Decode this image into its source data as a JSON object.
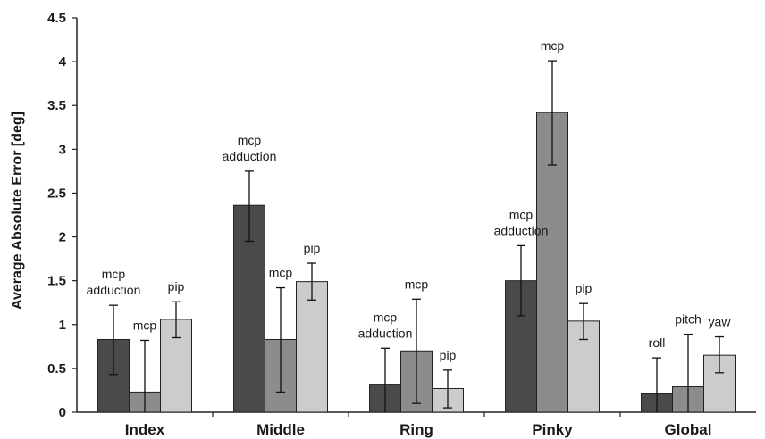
{
  "chart_data": {
    "type": "bar",
    "ylabel": "Average Absolute Error [deg]",
    "xlabel": "",
    "ylim": [
      0,
      4.5
    ],
    "yticks": [
      "0",
      "0.5",
      "1",
      "1.5",
      "2",
      "2.5",
      "3",
      "3.5",
      "4",
      "4.5"
    ],
    "grid": false,
    "legend": "none",
    "colors": [
      "#4a4a4a",
      "#8c8c8c",
      "#cccccc"
    ],
    "groups": [
      {
        "category": "Index",
        "bars": [
          {
            "label": [
              "mcp",
              "adduction"
            ],
            "value": 0.83,
            "err_low": 0.43,
            "err_high": 1.22
          },
          {
            "label": [
              "mcp"
            ],
            "value": 0.23,
            "err_low": 0.0,
            "err_high": 0.82
          },
          {
            "label": [
              "pip"
            ],
            "value": 1.06,
            "err_low": 0.85,
            "err_high": 1.26
          }
        ]
      },
      {
        "category": "Middle",
        "bars": [
          {
            "label": [
              "mcp",
              "adduction"
            ],
            "value": 2.36,
            "err_low": 1.95,
            "err_high": 2.75
          },
          {
            "label": [
              "mcp"
            ],
            "value": 0.83,
            "err_low": 0.23,
            "err_high": 1.42
          },
          {
            "label": [
              "pip"
            ],
            "value": 1.49,
            "err_low": 1.28,
            "err_high": 1.7
          }
        ]
      },
      {
        "category": "Ring",
        "bars": [
          {
            "label": [
              "mcp",
              "adduction"
            ],
            "value": 0.32,
            "err_low": 0.0,
            "err_high": 0.73
          },
          {
            "label": [
              "mcp"
            ],
            "value": 0.7,
            "err_low": 0.1,
            "err_high": 1.29
          },
          {
            "label": [
              "pip"
            ],
            "value": 0.27,
            "err_low": 0.05,
            "err_high": 0.48
          }
        ]
      },
      {
        "category": "Pinky",
        "bars": [
          {
            "label": [
              "mcp",
              "adduction"
            ],
            "value": 1.5,
            "err_low": 1.1,
            "err_high": 1.9
          },
          {
            "label": [
              "mcp"
            ],
            "value": 3.42,
            "err_low": 2.82,
            "err_high": 4.01
          },
          {
            "label": [
              "pip"
            ],
            "value": 1.04,
            "err_low": 0.83,
            "err_high": 1.24
          }
        ]
      },
      {
        "category": "Global",
        "bars": [
          {
            "label": [
              "roll"
            ],
            "value": 0.21,
            "err_low": 0.0,
            "err_high": 0.62
          },
          {
            "label": [
              "pitch"
            ],
            "value": 0.29,
            "err_low": 0.0,
            "err_high": 0.89
          },
          {
            "label": [
              "yaw"
            ],
            "value": 0.65,
            "err_low": 0.45,
            "err_high": 0.86
          }
        ]
      }
    ]
  }
}
